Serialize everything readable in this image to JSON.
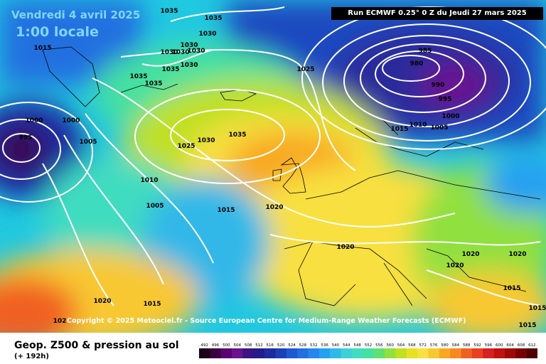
{
  "header": {
    "date": "Vendredi 4 avril 2025",
    "time": "1:00 locale",
    "run_info": "Run ECMWF 0.25° 0 Z du Jeudi 27 mars 2025"
  },
  "copyright": "Copyright © 2025 Meteociel.fr - Source European Centre for Medium-Range Weather Forecasts (ECMWF)",
  "footer": {
    "title": "Geop. Z500 & pression au sol",
    "subtitle": "(+ 192h)"
  },
  "legend": {
    "values": [
      "492",
      "496",
      "500",
      "504",
      "508",
      "512",
      "516",
      "520",
      "524",
      "528",
      "532",
      "536",
      "540",
      "544",
      "548",
      "552",
      "556",
      "560",
      "564",
      "568",
      "572",
      "576",
      "580",
      "584",
      "588",
      "592",
      "596",
      "600",
      "604",
      "608",
      "612"
    ],
    "colors": [
      "#1a001a",
      "#3a0040",
      "#5a0070",
      "#6c1090",
      "#3a1480",
      "#241c8c",
      "#1e2ca0",
      "#1c40b8",
      "#1e5ad0",
      "#2070e0",
      "#2288ee",
      "#26a0f0",
      "#30b8e8",
      "#3cd0d8",
      "#40dcc0",
      "#44e0a0",
      "#60e070",
      "#90e040",
      "#c0e020",
      "#e8e020",
      "#f8e040",
      "#f8c830",
      "#f8a820",
      "#f88820",
      "#f06020",
      "#e84020",
      "#d82020",
      "#c01010",
      "#a00808",
      "#7a0000",
      "#500000"
    ]
  },
  "isobars": [
    {
      "label": "1035"
    },
    {
      "label": "1035"
    },
    {
      "label": "1030"
    },
    {
      "label": "1030"
    },
    {
      "label": "1030"
    },
    {
      "label": "1030"
    },
    {
      "label": "1030"
    },
    {
      "label": "1035"
    },
    {
      "label": "1035"
    },
    {
      "label": "1035"
    },
    {
      "label": "1030"
    },
    {
      "label": "1015"
    },
    {
      "label": "1000"
    },
    {
      "label": "1000"
    },
    {
      "label": "995"
    },
    {
      "label": "1005"
    },
    {
      "label": "1025"
    },
    {
      "label": "1030"
    },
    {
      "label": "1035"
    },
    {
      "label": "1025"
    },
    {
      "label": "985"
    },
    {
      "label": "980"
    },
    {
      "label": "990"
    },
    {
      "label": "995"
    },
    {
      "label": "1000"
    },
    {
      "label": "1015"
    },
    {
      "label": "1010"
    },
    {
      "label": "1005"
    },
    {
      "label": "1010"
    },
    {
      "label": "1005"
    },
    {
      "label": "1015"
    },
    {
      "label": "1020"
    },
    {
      "label": "1020"
    },
    {
      "label": "1020"
    },
    {
      "label": "1020"
    },
    {
      "label": "1020"
    },
    {
      "label": "1020"
    },
    {
      "label": "1015"
    },
    {
      "label": "1015"
    },
    {
      "label": "1015"
    },
    {
      "label": "1015"
    },
    {
      "label": "102"
    }
  ]
}
